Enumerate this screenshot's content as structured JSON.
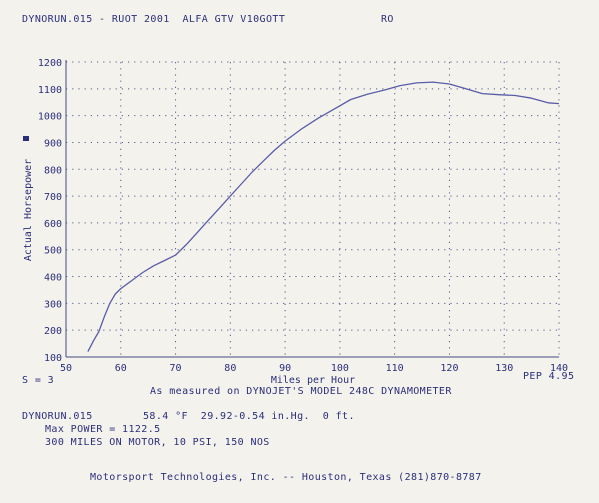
{
  "header": {
    "title": "DYNORUN.015 - RUOT 2001  ALFA GTV V10GOTT",
    "code": "RO"
  },
  "chart_data": {
    "type": "line",
    "xlabel": "Miles per Hour",
    "ylabel": "Actual Horsepower",
    "xlim": [
      50,
      140
    ],
    "ylim": [
      100,
      1200
    ],
    "xticks": [
      50,
      60,
      70,
      80,
      90,
      100,
      110,
      120,
      130,
      140
    ],
    "yticks": [
      100,
      200,
      300,
      400,
      500,
      600,
      700,
      800,
      900,
      1000,
      1100,
      1200
    ],
    "grid": true,
    "series": [
      {
        "color": "#5a5ca8",
        "x": [
          54,
          55,
          56,
          57,
          58,
          59,
          60,
          62,
          64,
          66,
          68,
          70,
          72,
          74,
          76,
          78,
          80,
          82,
          84,
          86,
          88,
          90,
          93,
          96,
          99,
          102,
          105,
          108,
          111,
          114,
          117,
          120,
          123,
          126,
          129,
          132,
          135,
          138,
          140
        ],
        "y": [
          120,
          160,
          195,
          250,
          300,
          335,
          355,
          385,
          415,
          440,
          460,
          480,
          520,
          565,
          610,
          655,
          700,
          745,
          790,
          830,
          870,
          905,
          950,
          990,
          1025,
          1060,
          1080,
          1095,
          1112,
          1122,
          1125,
          1118,
          1100,
          1082,
          1078,
          1075,
          1065,
          1048,
          1045
        ]
      }
    ]
  },
  "footer": {
    "smoothing": "S = 3",
    "measured_by": "As measured on DYNOJET'S MODEL 248C DYNAMOMETER",
    "pep": "PEP 4.95",
    "run_file": "DYNORUN.015",
    "conditions": "58.4 °F  29.92-0.54 in.Hg.  0 ft.",
    "max_power": "Max POWER = 1122.5",
    "notes": "300 MILES ON MOTOR, 10 PSI, 150 NOS",
    "company": "Motorsport Technologies, Inc. -- Houston, Texas (281)870-8787"
  }
}
